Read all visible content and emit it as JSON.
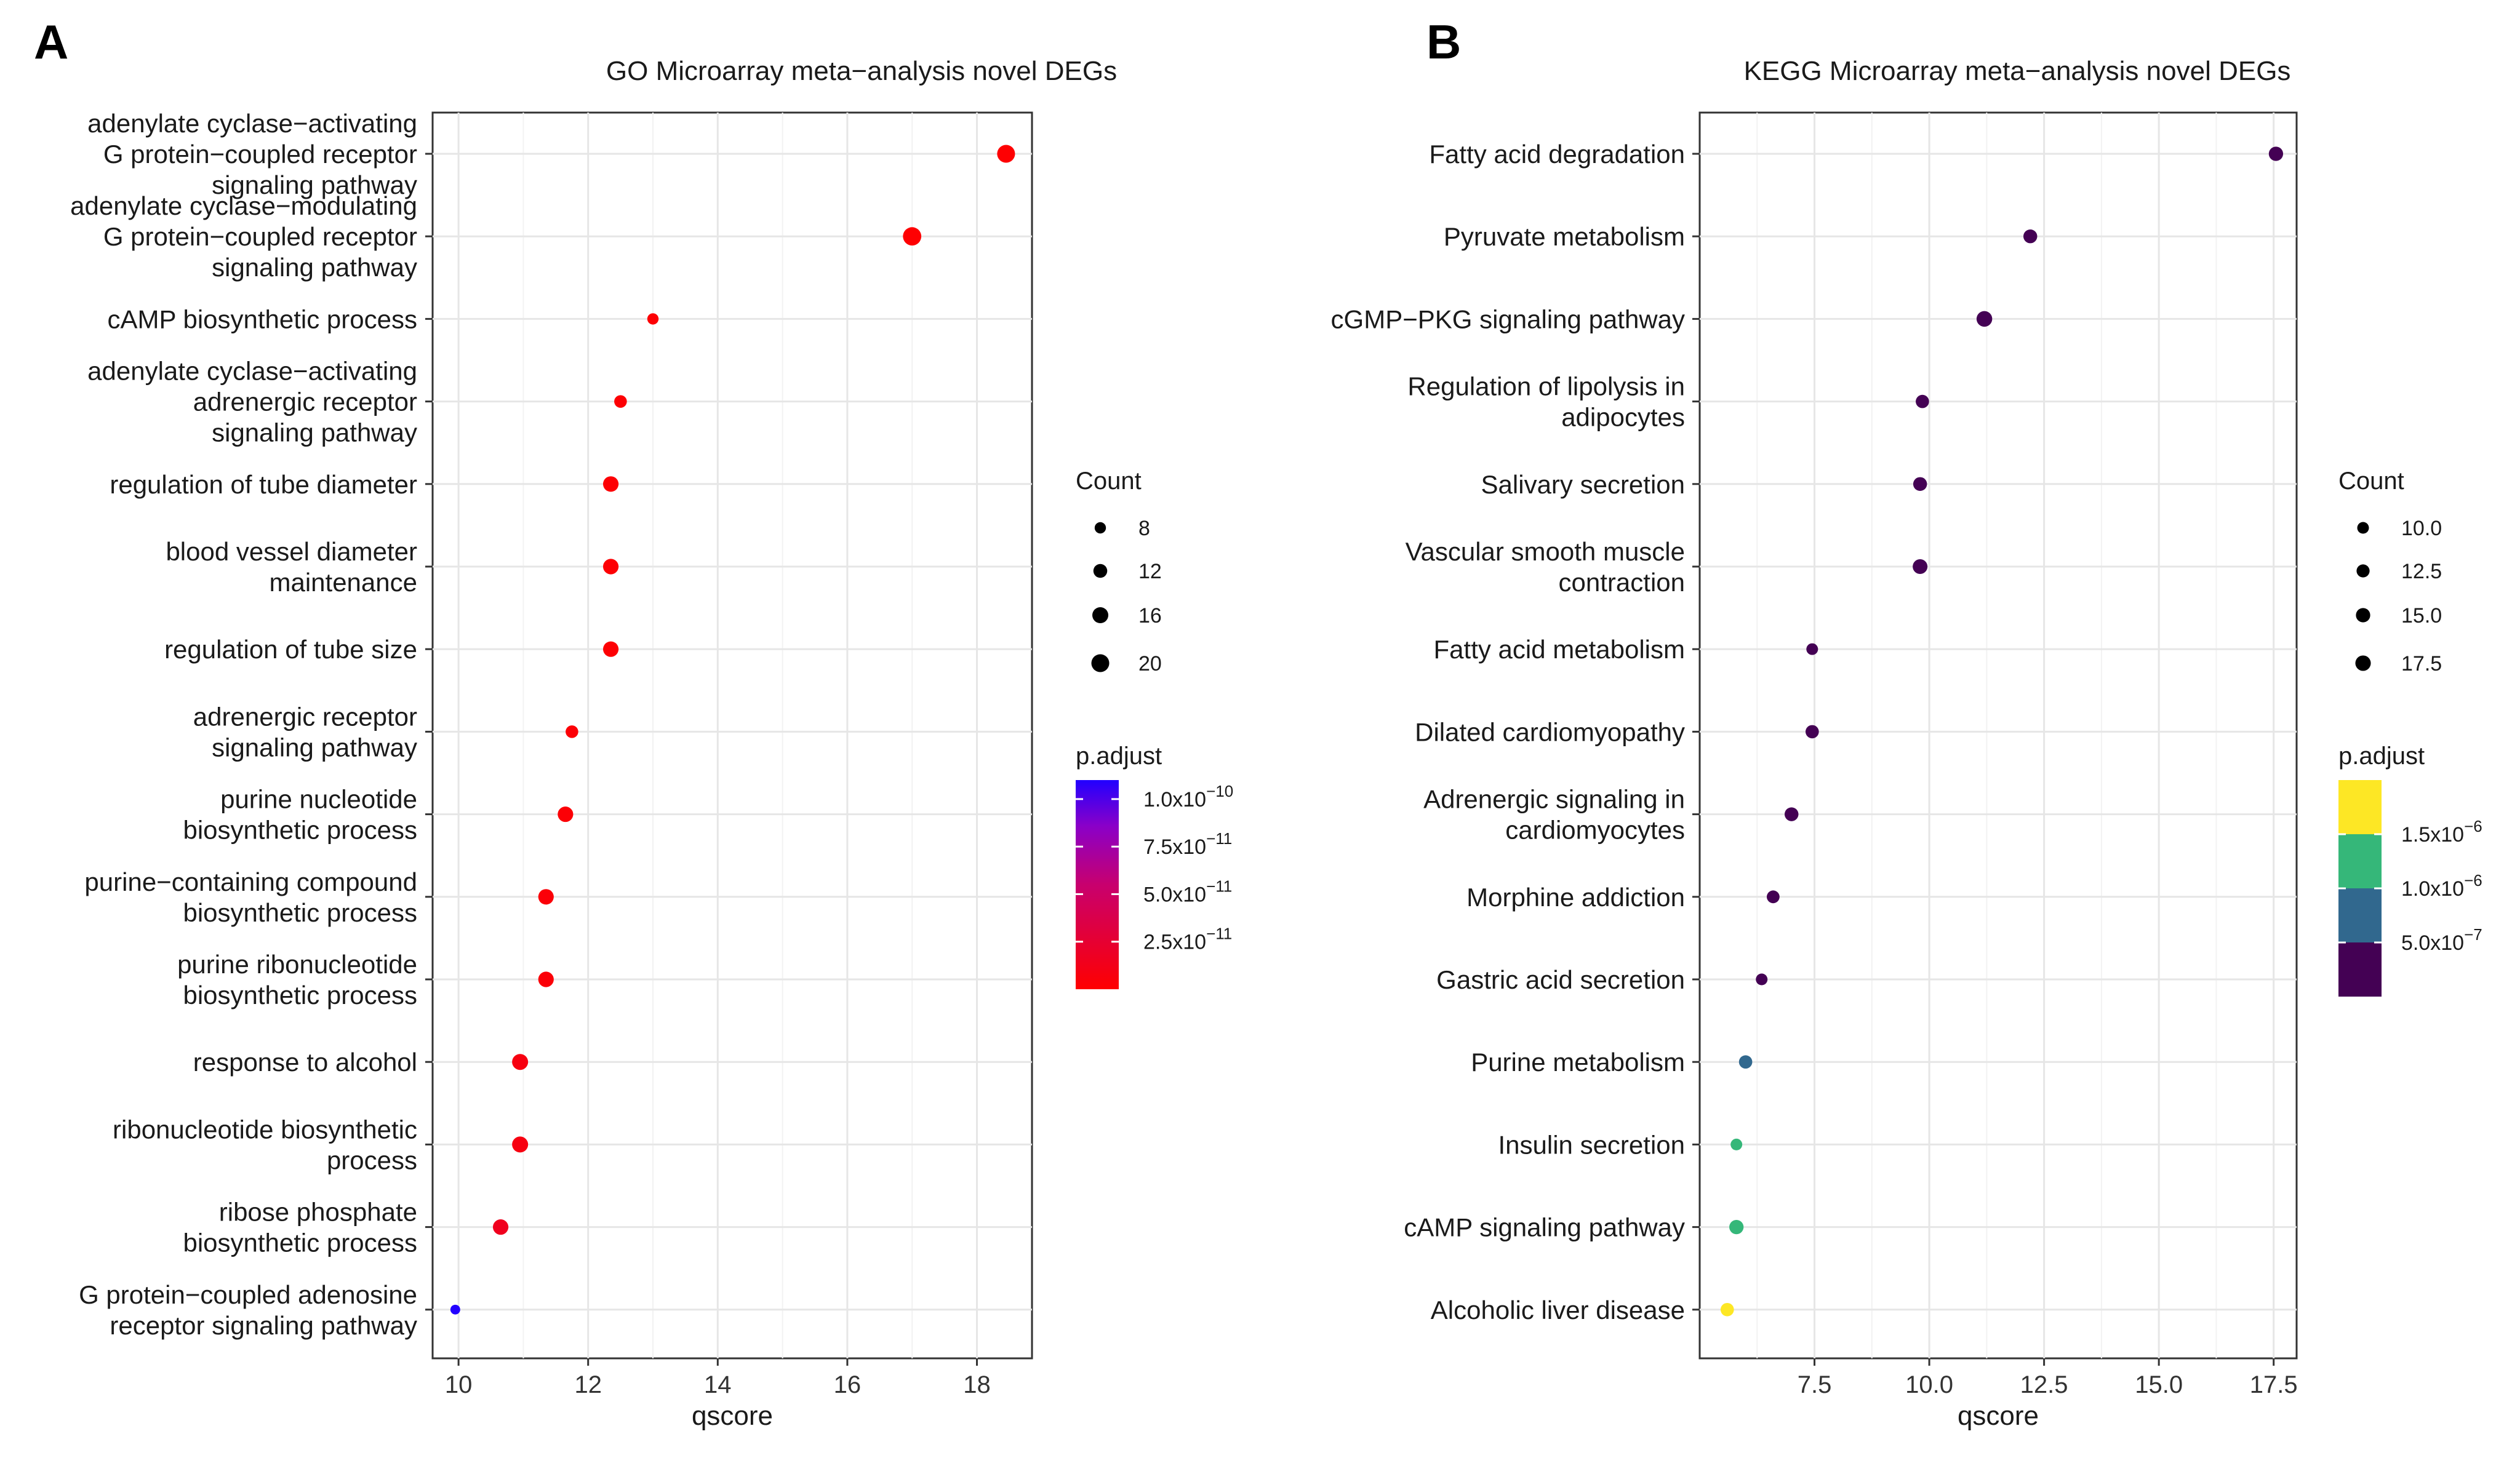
{
  "chart_data": [
    {
      "panel": "A",
      "type": "scatter",
      "title": "GO Microarray meta−analysis novel DEGs",
      "xlabel": "qscore",
      "ylabel": "",
      "xlim": [
        9.6,
        18.85
      ],
      "xticks": [
        10,
        12,
        14,
        16,
        18
      ],
      "xtick_labels": [
        "10",
        "12",
        "14",
        "16",
        "18"
      ],
      "categories": [
        [
          "adenylate cyclase−activating",
          "G protein−coupled receptor",
          "signaling pathway"
        ],
        [
          "adenylate cyclase−modulating",
          "G protein−coupled receptor",
          "signaling pathway"
        ],
        [
          "cAMP biosynthetic process"
        ],
        [
          "adenylate cyclase−activating",
          "adrenergic receptor",
          "signaling pathway"
        ],
        [
          "regulation of tube diameter"
        ],
        [
          "blood vessel diameter",
          "maintenance"
        ],
        [
          "regulation of tube size"
        ],
        [
          "adrenergic receptor",
          "signaling pathway"
        ],
        [
          "purine nucleotide",
          "biosynthetic process"
        ],
        [
          "purine−containing compound",
          "biosynthetic process"
        ],
        [
          "purine ribonucleotide",
          "biosynthetic process"
        ],
        [
          "response to alcohol"
        ],
        [
          "ribonucleotide biosynthetic",
          "process"
        ],
        [
          "ribose phosphate",
          "biosynthetic process"
        ],
        [
          "G protein−coupled adenosine",
          "receptor signaling pathway"
        ]
      ],
      "qscore": [
        18.45,
        17.0,
        13.0,
        12.5,
        12.35,
        12.35,
        12.35,
        11.75,
        11.65,
        11.35,
        11.35,
        10.95,
        10.95,
        10.65,
        9.95
      ],
      "count": [
        20,
        21,
        8,
        10,
        15,
        15,
        15,
        10,
        15,
        15,
        15,
        16,
        16,
        15,
        6
      ],
      "p_adjust": [
        1e-12,
        1e-12,
        2e-12,
        2e-12,
        2e-12,
        2e-12,
        2e-12,
        3e-12,
        3e-12,
        4e-12,
        4e-12,
        8e-12,
        8e-12,
        1.5e-11,
        1.1e-10
      ],
      "color_scale": {
        "type": "gradient",
        "low": "#ff0000",
        "high": "#0000ff",
        "range": [
          0,
          1.1e-10
        ]
      },
      "legend": {
        "count_title": "Count",
        "count_values": [
          8,
          12,
          16,
          20
        ],
        "count_labels": [
          "8",
          "12",
          "16",
          "20"
        ],
        "color_title": "p.adjust",
        "color_ticks": [
          {
            "mant": "1.0",
            "exp": "−10",
            "value": 1e-10
          },
          {
            "mant": "7.5",
            "exp": "−11",
            "value": 7.5e-11
          },
          {
            "mant": "5.0",
            "exp": "−11",
            "value": 5e-11
          },
          {
            "mant": "2.5",
            "exp": "−11",
            "value": 2.5e-11
          }
        ]
      }
    },
    {
      "panel": "B",
      "type": "scatter",
      "title": "KEGG Microarray meta−analysis novel DEGs",
      "xlabel": "qscore",
      "ylabel": "",
      "xlim": [
        5.0,
        18.0
      ],
      "xticks": [
        7.5,
        10.0,
        12.5,
        15.0,
        17.5
      ],
      "xtick_labels": [
        "7.5",
        "10.0",
        "12.5",
        "15.0",
        "17.5"
      ],
      "categories": [
        [
          "Fatty acid degradation"
        ],
        [
          "Pyruvate metabolism"
        ],
        [
          "cGMP−PKG signaling pathway"
        ],
        [
          "Regulation of lipolysis in",
          "adipocytes"
        ],
        [
          "Salivary secretion"
        ],
        [
          "Vascular smooth muscle",
          "contraction"
        ],
        [
          "Fatty acid metabolism"
        ],
        [
          "Dilated cardiomyopathy"
        ],
        [
          "Adrenergic signaling in",
          "cardiomyocytes"
        ],
        [
          "Morphine addiction"
        ],
        [
          "Gastric acid secretion"
        ],
        [
          "Purine metabolism"
        ],
        [
          "Insulin secretion"
        ],
        [
          "cAMP signaling pathway"
        ],
        [
          "Alcoholic liver disease"
        ]
      ],
      "qscore": [
        17.55,
        12.2,
        11.2,
        9.85,
        9.8,
        9.8,
        7.45,
        7.45,
        7.0,
        6.6,
        6.35,
        6.0,
        5.8,
        5.8,
        5.6
      ],
      "count": [
        15,
        14,
        18,
        13,
        14,
        16,
        10,
        13,
        14,
        12,
        10,
        13,
        10,
        15,
        13
      ],
      "p_adjust": [
        1e-08,
        1e-08,
        1e-08,
        1e-08,
        1e-08,
        1e-08,
        1e-08,
        1e-08,
        1e-08,
        1e-08,
        1e-08,
        8e-07,
        1.2e-06,
        1.2e-06,
        1.7e-06
      ],
      "color_scale": {
        "type": "binned",
        "bins": [
          {
            "max": 6.5e-07,
            "color": "#440154"
          },
          {
            "max": 1.05e-06,
            "color": "#31688e"
          },
          {
            "max": 1.45e-06,
            "color": "#35b779"
          },
          {
            "max": 1.0,
            "color": "#fde725"
          }
        ]
      },
      "legend": {
        "count_title": "Count",
        "count_values": [
          10.0,
          12.5,
          15.0,
          17.5
        ],
        "count_labels": [
          "10.0",
          "12.5",
          "15.0",
          "17.5"
        ],
        "color_title": "p.adjust",
        "color_bins": [
          "#fde725",
          "#35b779",
          "#31688e",
          "#440154"
        ],
        "color_ticks": [
          {
            "mant": "1.5",
            "exp": "−6"
          },
          {
            "mant": "1.0",
            "exp": "−6"
          },
          {
            "mant": "5.0",
            "exp": "−7"
          }
        ]
      }
    }
  ]
}
